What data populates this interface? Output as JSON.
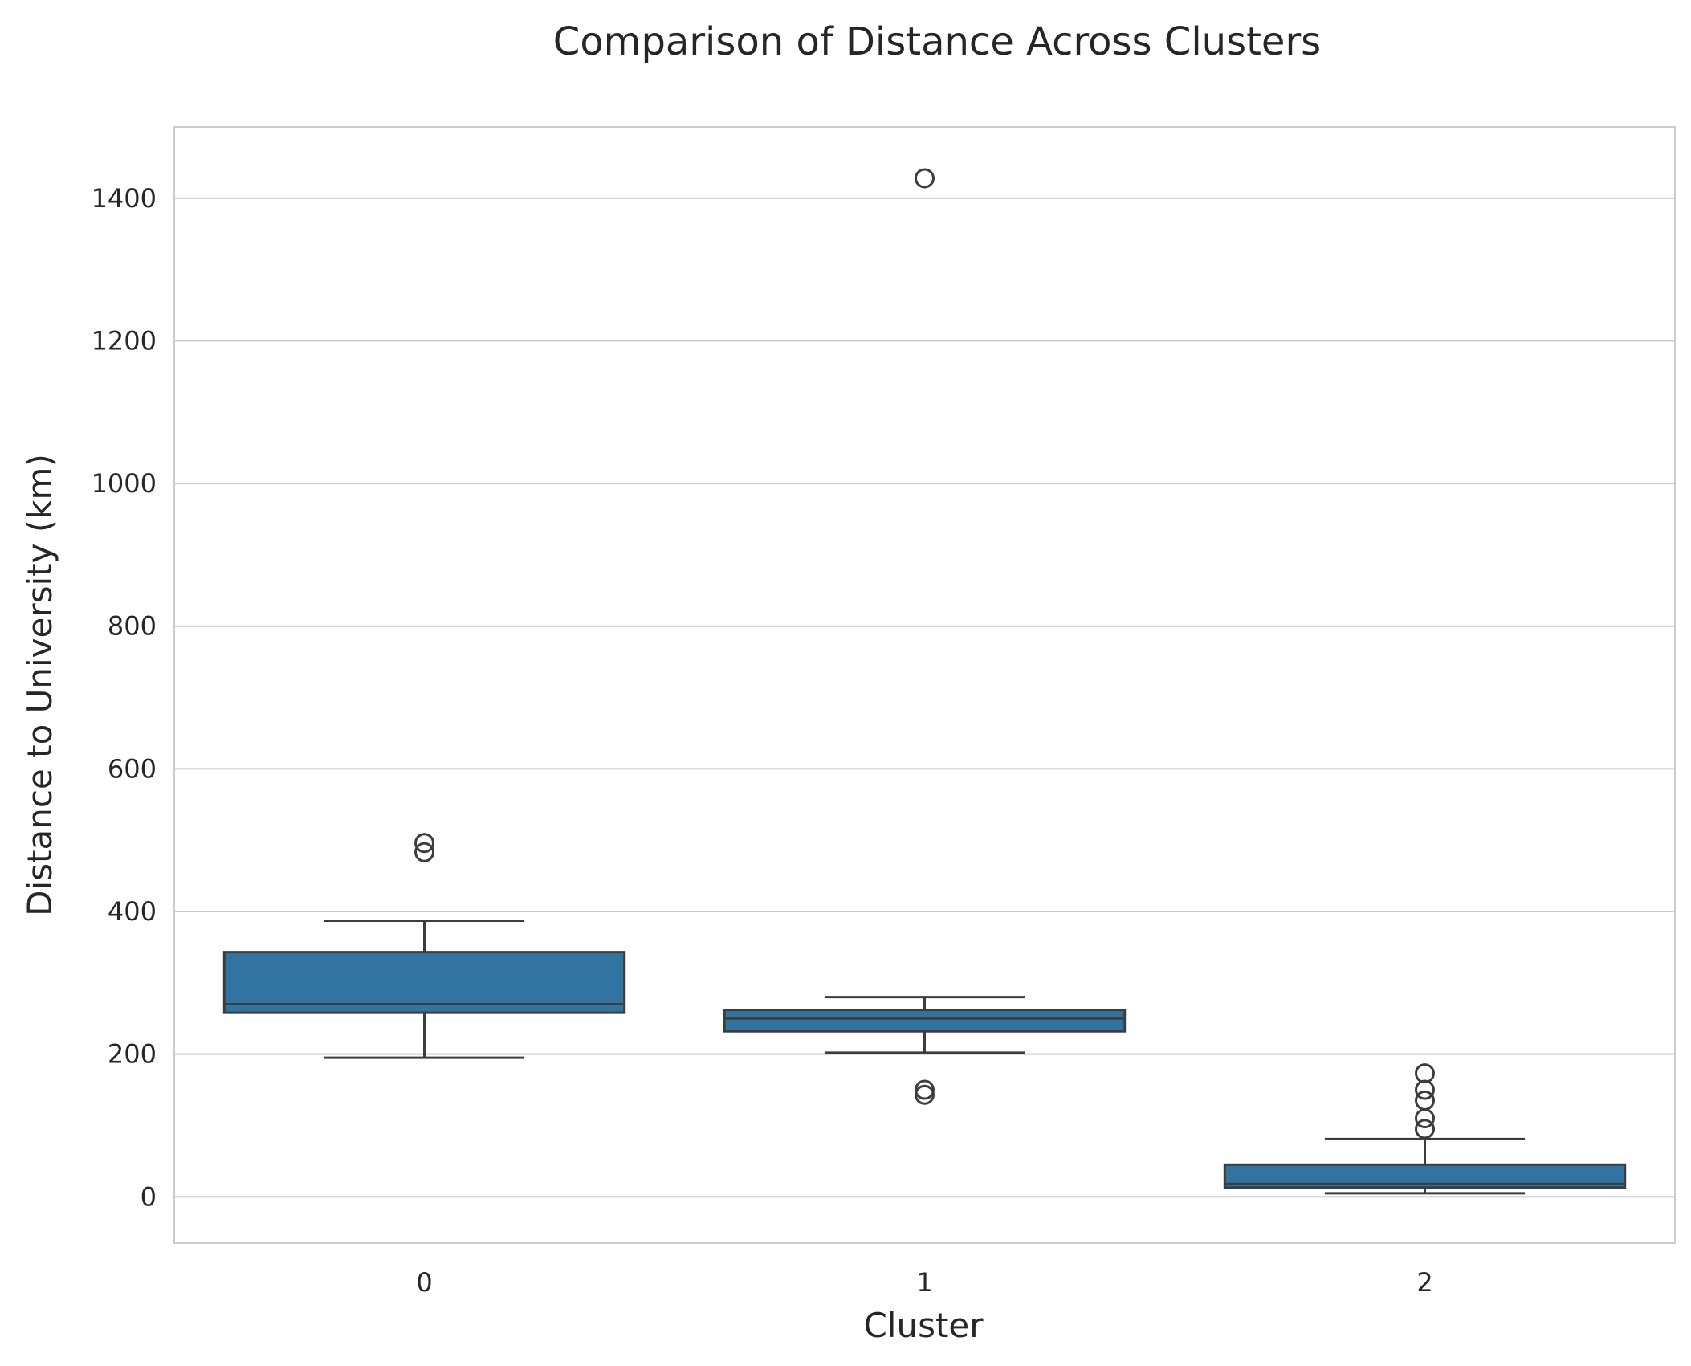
{
  "chart_data": {
    "type": "box",
    "title": "Comparison of Distance Across Clusters",
    "xlabel": "Cluster",
    "ylabel": "Distance to University (km)",
    "categories": [
      "0",
      "1",
      "2"
    ],
    "ylim": [
      -65,
      1500
    ],
    "yticks": [
      0,
      200,
      400,
      600,
      800,
      1000,
      1200,
      1400
    ],
    "grid": true,
    "box_color": "#3274a1",
    "edge_color": "#3d3d3d",
    "grid_color": "#cccccc",
    "boxes": [
      {
        "cluster": "0",
        "whisker_low": 195,
        "q1": 258,
        "median": 270,
        "q3": 343,
        "whisker_high": 387,
        "outliers": [
          483,
          496
        ]
      },
      {
        "cluster": "1",
        "whisker_low": 202,
        "q1": 232,
        "median": 250,
        "q3": 262,
        "whisker_high": 280,
        "outliers": [
          143,
          150,
          1428
        ]
      },
      {
        "cluster": "2",
        "whisker_low": 5,
        "q1": 13,
        "median": 18,
        "q3": 45,
        "whisker_high": 81,
        "outliers": [
          95,
          110,
          135,
          150,
          173
        ]
      }
    ]
  }
}
